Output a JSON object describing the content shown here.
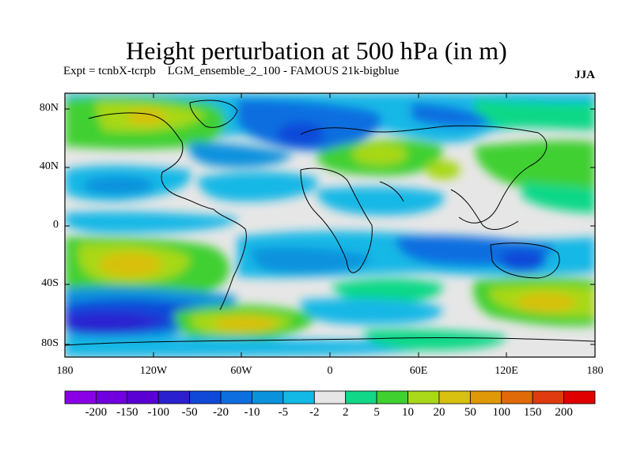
{
  "title": "Height perturbation at 500 hPa (in m)",
  "subtitle_left": "Expt = tcnbX-tcrpb    LGM_ensemble_2_100 - FAMOUS 21k-bigblue",
  "subtitle_right": "JJA",
  "y_ticks": [
    "80N",
    "40N",
    "0",
    "40S",
    "80S"
  ],
  "x_ticks": [
    "180",
    "120W",
    "60W",
    "0",
    "60E",
    "120E",
    "180"
  ],
  "colorbar": {
    "labels": [
      "-200",
      "-150",
      "-100",
      "-50",
      "-20",
      "-10",
      "-5",
      "-2",
      "2",
      "5",
      "10",
      "20",
      "50",
      "100",
      "150",
      "200"
    ],
    "colors": [
      "#8a00e6",
      "#7000dd",
      "#5a00d4",
      "#2a20d0",
      "#1048d8",
      "#0d6ee0",
      "#0a92dd",
      "#12b8e6",
      "#e6e6e6",
      "#10d888",
      "#40d030",
      "#a8d818",
      "#d8c010",
      "#e09808",
      "#e06a08",
      "#e03a10",
      "#e00000"
    ]
  }
}
